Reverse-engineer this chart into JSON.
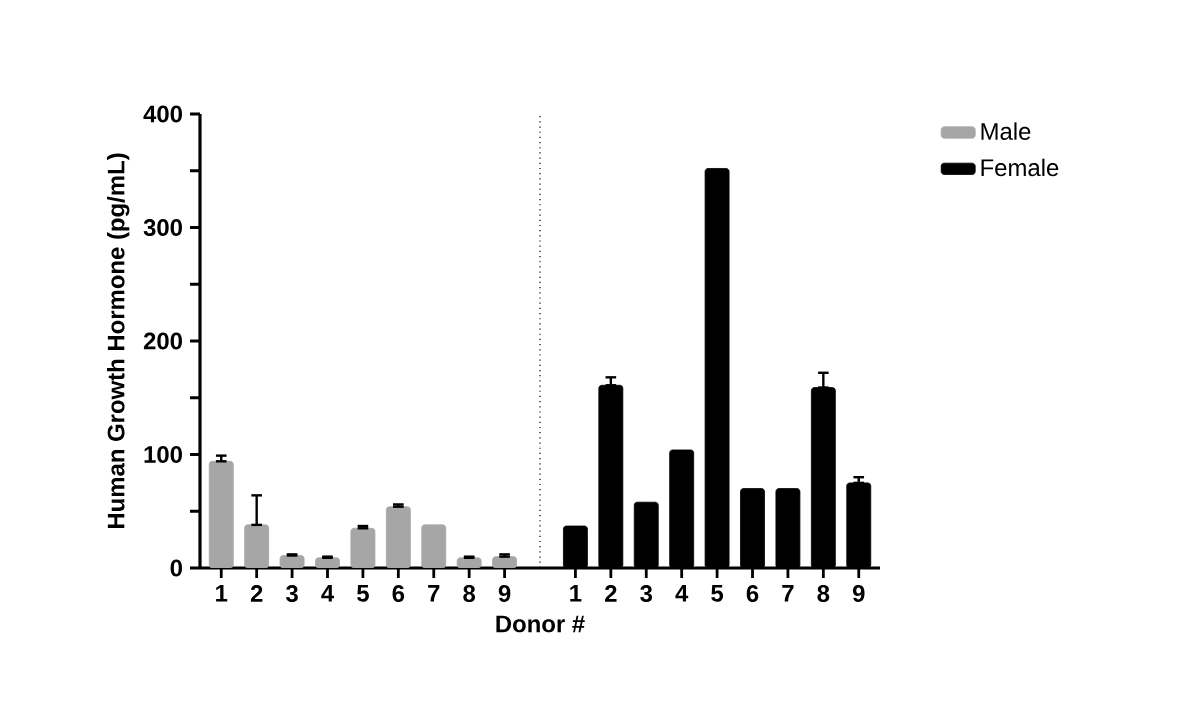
{
  "chart_data": {
    "type": "bar",
    "xlabel": "Donor #",
    "ylabel": "Human Growth Hormone (pg/mL)",
    "categories": [
      "1",
      "2",
      "3",
      "4",
      "5",
      "6",
      "7",
      "8",
      "9",
      null,
      "1",
      "2",
      "3",
      "4",
      "5",
      "6",
      "7",
      "8",
      "9"
    ],
    "series": [
      {
        "name": "Male",
        "color": "#a6a6a6",
        "values": [
          94,
          38,
          11,
          9,
          35,
          54,
          38,
          9,
          10,
          null,
          null,
          null,
          null,
          null,
          null,
          null,
          null,
          null,
          null
        ],
        "errors": [
          [
            94,
            99
          ],
          [
            38,
            64
          ],
          [
            11,
            12
          ],
          [
            9,
            10
          ],
          [
            35,
            37
          ],
          [
            54,
            56
          ],
          null,
          [
            9,
            10
          ],
          [
            10,
            12
          ],
          null,
          null,
          null,
          null,
          null,
          null,
          null,
          null,
          null,
          null
        ]
      },
      {
        "name": "Female",
        "color": "#000000",
        "values": [
          null,
          null,
          null,
          null,
          null,
          null,
          null,
          null,
          null,
          null,
          37,
          161,
          58,
          104,
          352,
          70,
          70,
          159,
          75
        ],
        "errors": [
          null,
          null,
          null,
          null,
          null,
          null,
          null,
          null,
          null,
          null,
          null,
          [
            161,
            168
          ],
          null,
          null,
          null,
          null,
          null,
          [
            159,
            172
          ],
          [
            75,
            80
          ]
        ]
      }
    ],
    "ylim": [
      0,
      400
    ],
    "yticks": [
      0,
      {
        "value": 50,
        "label": null
      },
      100,
      {
        "value": 150,
        "label": null
      },
      200,
      {
        "value": 250,
        "label": null
      },
      300,
      {
        "value": 350,
        "label": null
      },
      400
    ],
    "legend": "top right"
  }
}
